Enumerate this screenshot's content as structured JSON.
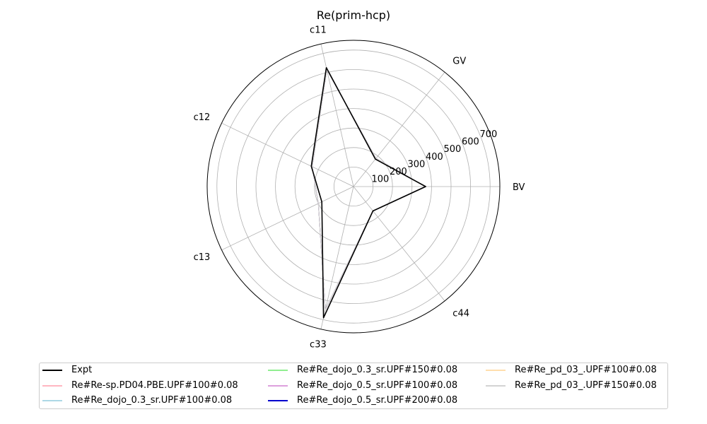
{
  "chart_data": {
    "type": "radar",
    "title": "Re(prim-hcp)",
    "axes": [
      "BV",
      "GV",
      "c11",
      "c12",
      "c13",
      "c33",
      "c44"
    ],
    "radial_ticks": [
      100,
      200,
      300,
      400,
      500,
      600,
      700
    ],
    "rlim": [
      0,
      750
    ],
    "grid": true,
    "legend_position": "bottom",
    "series": [
      {
        "name": "Expt",
        "color": "#000000",
        "values": [
          370,
          180,
          625,
          240,
          180,
          690,
          160
        ]
      },
      {
        "name": "Re#Re-sp.PD04.PBE.UPF#100#0.08",
        "color": "#ffb6c1",
        "values": [
          368,
          185,
          615,
          235,
          200,
          650,
          160
        ]
      },
      {
        "name": "Re#Re_dojo_0.3_sr.UPF#100#0.08",
        "color": "#add8e6",
        "values": [
          368,
          185,
          615,
          235,
          200,
          650,
          160
        ]
      },
      {
        "name": "Re#Re_dojo_0.3_sr.UPF#150#0.08",
        "color": "#90ee90",
        "values": [
          368,
          185,
          615,
          235,
          200,
          650,
          160
        ]
      },
      {
        "name": "Re#Re_dojo_0.5_sr.UPF#100#0.08",
        "color": "#dda0dd",
        "values": [
          368,
          185,
          615,
          235,
          200,
          650,
          160
        ]
      },
      {
        "name": "Re#Re_dojo_0.5_sr.UPF#200#0.08",
        "color": "#0000cd",
        "values": [
          368,
          185,
          615,
          235,
          200,
          650,
          160
        ]
      },
      {
        "name": "Re#Re_pd_03_.UPF#100#0.08",
        "color": "#ffdead",
        "values": [
          368,
          185,
          615,
          235,
          200,
          650,
          160
        ]
      },
      {
        "name": "Re#Re_pd_03_.UPF#150#0.08",
        "color": "#d3d3d3",
        "values": [
          368,
          185,
          615,
          235,
          200,
          650,
          160
        ]
      }
    ]
  }
}
